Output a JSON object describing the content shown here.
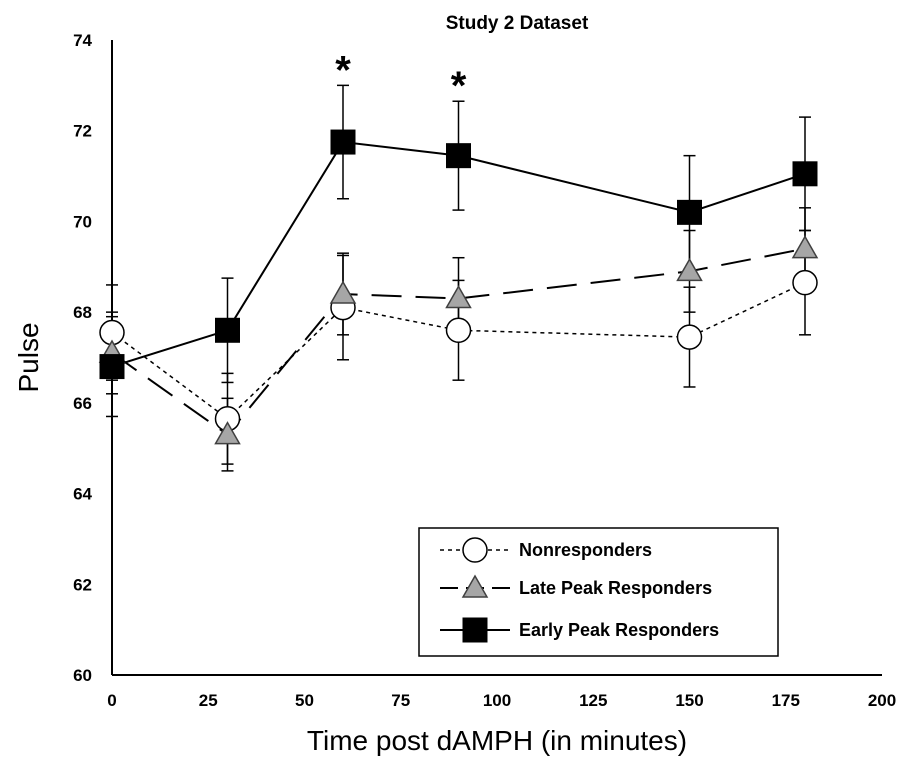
{
  "chart_data": {
    "type": "line",
    "title": "Study 2 Dataset",
    "xlabel": "Time post dAMPH (in minutes)",
    "ylabel": "Pulse",
    "xlim": [
      0,
      200
    ],
    "ylim": [
      60,
      74
    ],
    "xticks": [
      0,
      25,
      50,
      75,
      100,
      125,
      150,
      175,
      200
    ],
    "yticks": [
      60,
      62,
      64,
      66,
      68,
      70,
      72,
      74
    ],
    "grid": false,
    "legend_position": "bottom-right",
    "series": [
      {
        "name": "Nonresponders",
        "marker": "circle",
        "line_style": "dotted",
        "color": "#ffffff",
        "x": [
          0,
          30,
          60,
          90,
          150,
          180
        ],
        "y": [
          67.55,
          65.65,
          68.1,
          67.6,
          67.45,
          68.65
        ],
        "err": [
          1.05,
          1.0,
          1.15,
          1.1,
          1.1,
          1.15
        ]
      },
      {
        "name": "Late Peak Responders",
        "marker": "triangle",
        "line_style": "dashed",
        "color": "#a6a6a6",
        "x": [
          0,
          30,
          60,
          90,
          150,
          180
        ],
        "y": [
          67.1,
          65.3,
          68.4,
          68.3,
          68.9,
          69.4
        ],
        "err": [
          0.9,
          0.8,
          0.9,
          0.9,
          0.9,
          0.9
        ]
      },
      {
        "name": "Early Peak Responders",
        "marker": "square",
        "line_style": "solid",
        "color": "#000000",
        "x": [
          0,
          30,
          60,
          90,
          150,
          180
        ],
        "y": [
          66.8,
          67.6,
          71.75,
          71.45,
          70.2,
          71.05
        ],
        "err": [
          1.1,
          1.15,
          1.25,
          1.2,
          1.25,
          1.25
        ]
      }
    ],
    "annotations": [
      {
        "text": "*",
        "x": 60
      },
      {
        "text": "*",
        "x": 90
      }
    ]
  }
}
